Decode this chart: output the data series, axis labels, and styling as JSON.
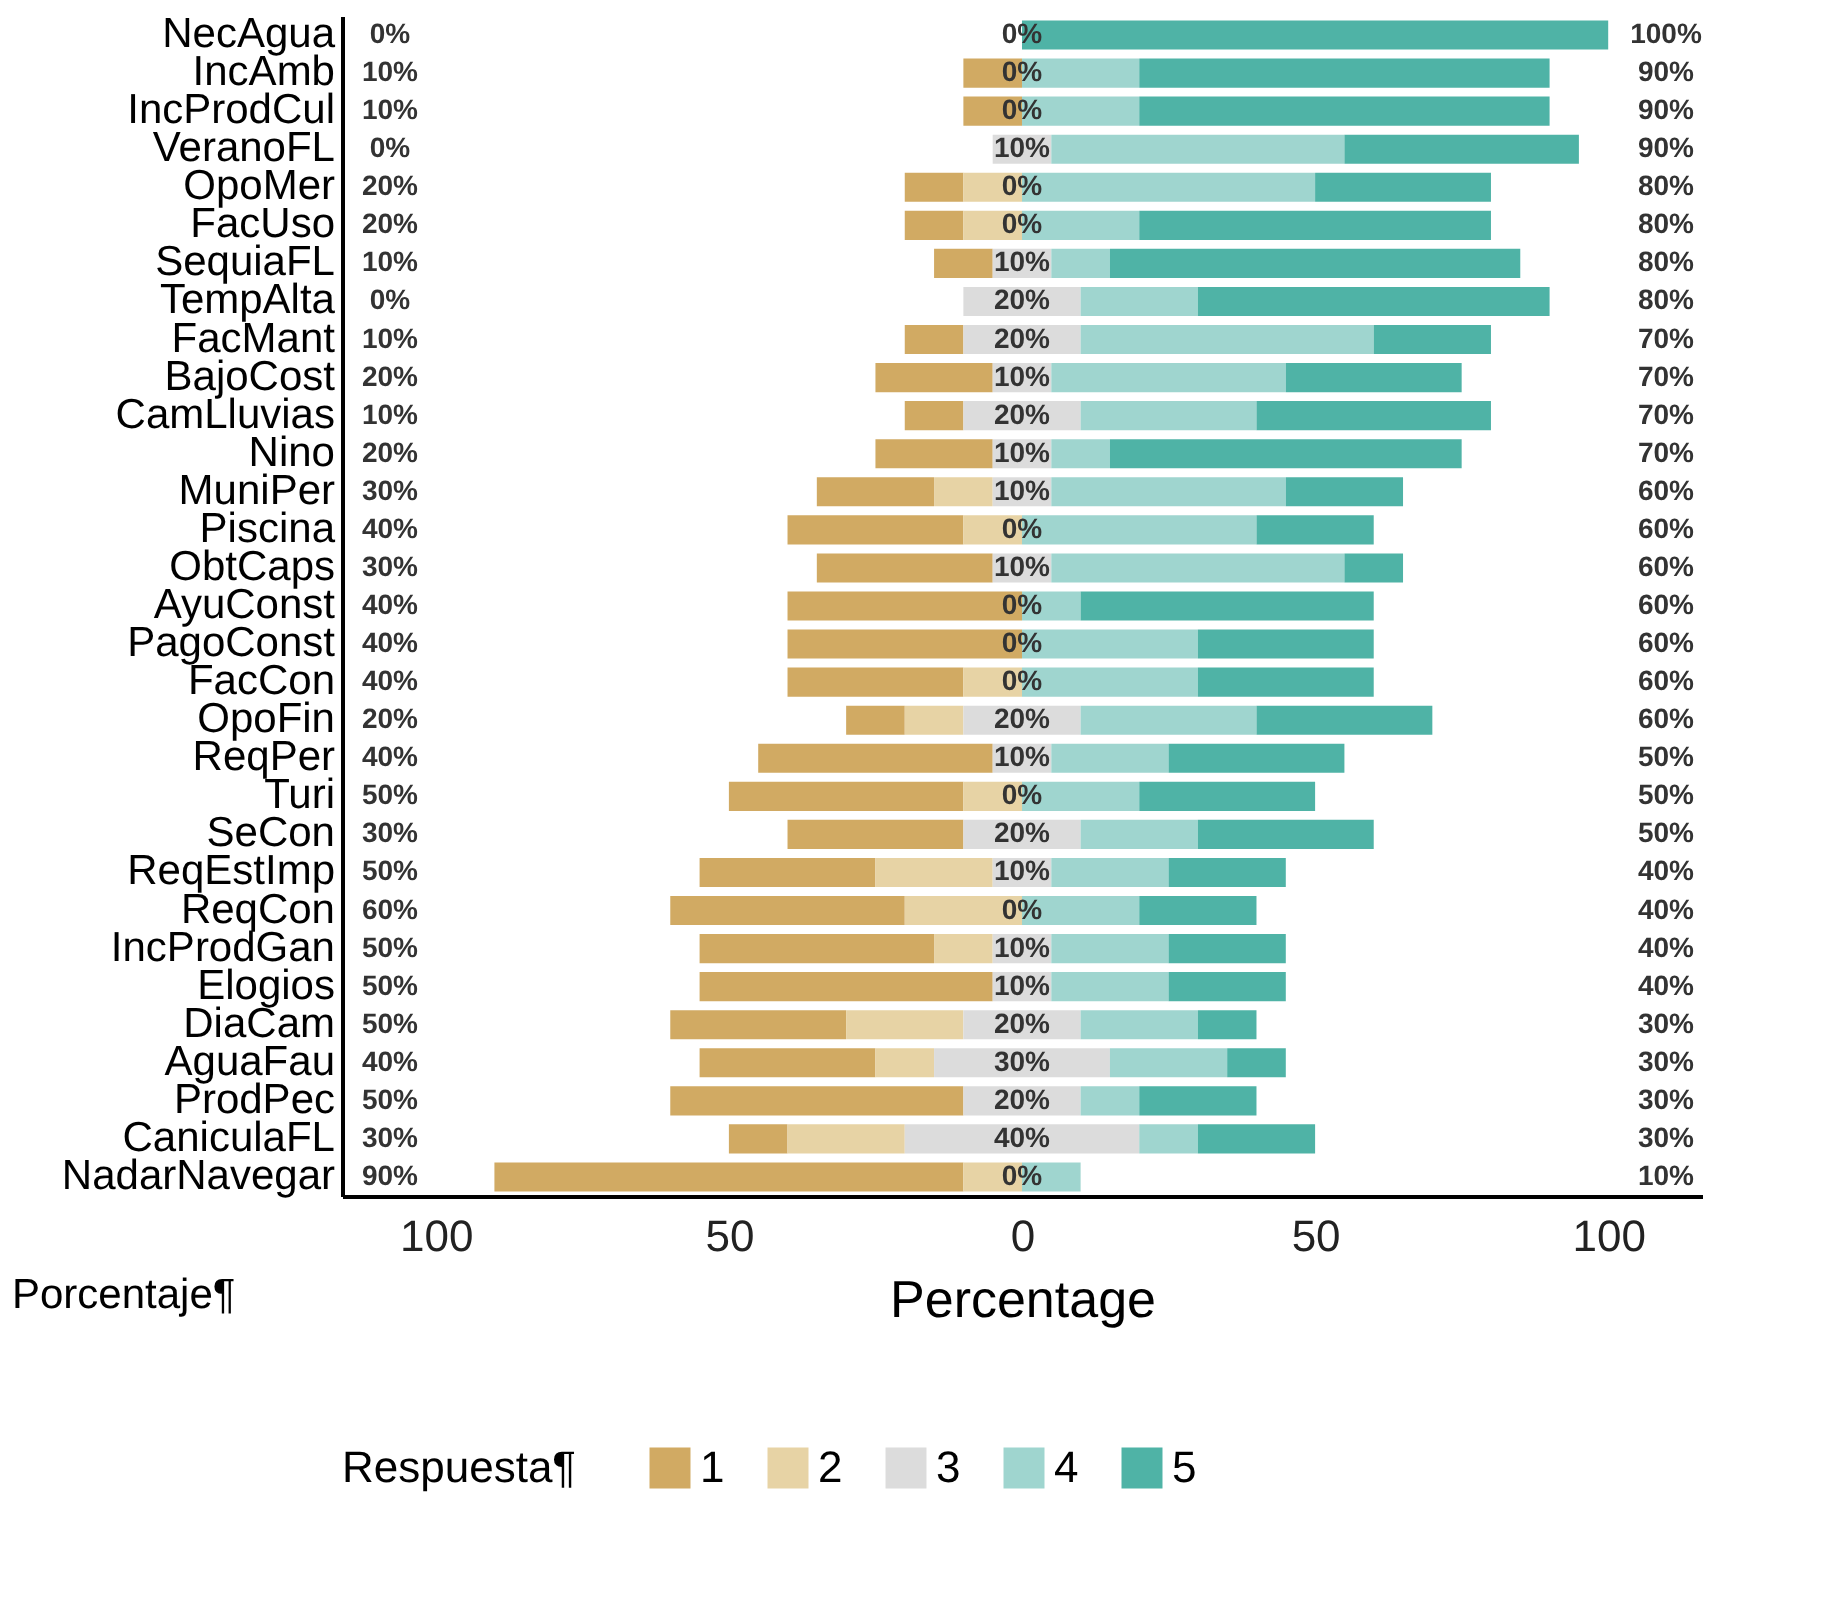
{
  "chart_data": {
    "type": "bar",
    "orientation": "horizontal",
    "categories": [
      "NecAgua",
      "IncAmb",
      "IncProdCul",
      "VeranoFL",
      "OpoMer",
      "FacUso",
      "SequiaFL",
      "TempAlta",
      "FacMant",
      "BajoCost",
      "CamLluvias",
      "Nino",
      "MuniPer",
      "Piscina",
      "ObtCaps",
      "AyuConst",
      "PagoConst",
      "FacCon",
      "OpoFin",
      "ReqPer",
      "Turi",
      "SeCon",
      "ReqEstImp",
      "ReqCon",
      "IncProdGan",
      "Elogios",
      "DiaCam",
      "AguaFau",
      "ProdPec",
      "CaniculaFL",
      "NadarNavegar"
    ],
    "series": [
      {
        "name": "1",
        "color": "#d1aa63",
        "values": [
          0,
          10,
          10,
          0,
          10,
          10,
          10,
          0,
          10,
          20,
          10,
          20,
          20,
          30,
          30,
          40,
          40,
          30,
          10,
          40,
          40,
          30,
          30,
          40,
          40,
          50,
          30,
          30,
          50,
          10,
          80
        ],
        "base": [
          null,
          -10,
          -10,
          null,
          -20,
          -20,
          -15,
          null,
          -20,
          -25,
          -20,
          -25,
          -35,
          -40,
          -35,
          -40,
          -40,
          -40,
          -30,
          -45,
          -50,
          -40,
          -55,
          -60,
          -55,
          -55,
          -60,
          -55,
          -60,
          -50,
          -90
        ]
      },
      {
        "name": "2",
        "color": "#e7d3a5",
        "values": [
          0,
          0,
          0,
          0,
          10,
          10,
          0,
          0,
          0,
          0,
          0,
          0,
          10,
          10,
          0,
          0,
          0,
          10,
          10,
          0,
          10,
          0,
          20,
          20,
          10,
          0,
          20,
          10,
          0,
          20,
          10
        ],
        "base": [
          null,
          null,
          null,
          null,
          -10,
          -10,
          null,
          null,
          null,
          null,
          null,
          null,
          -15,
          -10,
          null,
          null,
          null,
          -10,
          -20,
          null,
          -10,
          null,
          -25,
          -20,
          -15,
          null,
          -30,
          -25,
          null,
          -40,
          -10
        ]
      },
      {
        "name": "3",
        "color": "#dcdcdc",
        "values": [
          0,
          0,
          0,
          10,
          0,
          0,
          10,
          20,
          20,
          10,
          20,
          10,
          10,
          0,
          10,
          0,
          0,
          0,
          20,
          10,
          0,
          20,
          10,
          0,
          10,
          10,
          20,
          30,
          20,
          40,
          0
        ],
        "base": [
          null,
          null,
          null,
          -5,
          null,
          null,
          -5,
          -10,
          -10,
          -5,
          -10,
          -5,
          -5,
          null,
          -5,
          null,
          null,
          null,
          -10,
          -5,
          null,
          -10,
          -5,
          null,
          -5,
          -5,
          -10,
          -15,
          -10,
          -20,
          null
        ],
        "value_labels": [
          "0%",
          "0%",
          "0%",
          "10%",
          "0%",
          "0%",
          "10%",
          "20%",
          "20%",
          "10%",
          "20%",
          "10%",
          "10%",
          "0%",
          "10%",
          "0%",
          "0%",
          "0%",
          "20%",
          "10%",
          "0%",
          "20%",
          "10%",
          "0%",
          "10%",
          "10%",
          "20%",
          "30%",
          "20%",
          "40%",
          "0%"
        ]
      },
      {
        "name": "4",
        "color": "#9fd5cf",
        "values": [
          0,
          20,
          20,
          50,
          50,
          20,
          10,
          20,
          50,
          40,
          30,
          10,
          40,
          40,
          50,
          10,
          30,
          30,
          30,
          20,
          20,
          20,
          20,
          20,
          20,
          20,
          20,
          20,
          10,
          10,
          10
        ],
        "base": [
          null,
          0,
          0,
          5,
          0,
          0,
          5,
          10,
          10,
          5,
          10,
          5,
          5,
          0,
          5,
          0,
          0,
          0,
          10,
          5,
          0,
          10,
          5,
          0,
          5,
          5,
          10,
          15,
          10,
          20,
          0
        ]
      },
      {
        "name": "5",
        "color": "#4fb3a6",
        "values": [
          100,
          70,
          70,
          40,
          30,
          60,
          70,
          60,
          20,
          30,
          40,
          60,
          20,
          20,
          10,
          50,
          30,
          30,
          30,
          30,
          30,
          30,
          20,
          20,
          20,
          20,
          10,
          10,
          20,
          20,
          0
        ],
        "base": [
          0,
          20,
          20,
          55,
          50,
          20,
          15,
          30,
          60,
          45,
          40,
          15,
          45,
          40,
          55,
          10,
          30,
          30,
          40,
          25,
          20,
          30,
          25,
          20,
          25,
          25,
          30,
          35,
          20,
          30,
          null
        ]
      }
    ],
    "xlim": [
      -116,
      116
    ],
    "xticks": [
      {
        "value": -100,
        "label": "100"
      },
      {
        "value": -50,
        "label": "50"
      },
      0,
      50,
      100
    ],
    "xlabel": "Percentage",
    "legend_title": "Respuesta¶",
    "legend": "bottom",
    "annotations": [
      "0%",
      "10%",
      "10%",
      "0%",
      "20%",
      "20%",
      "10%",
      "0%",
      "10%",
      "20%",
      "10%",
      "20%",
      "30%",
      "40%",
      "30%",
      "40%",
      "40%",
      "40%",
      "20%",
      "40%",
      "50%",
      "30%",
      "50%",
      "60%",
      "50%",
      "50%",
      "50%",
      "40%",
      "50%",
      "30%",
      "90%",
      "100%",
      "90%",
      "90%",
      "90%",
      "80%",
      "80%",
      "80%",
      "80%",
      "70%",
      "70%",
      "70%",
      "70%",
      "60%",
      "60%",
      "60%",
      "60%",
      "60%",
      "60%",
      "60%",
      "50%",
      "50%",
      "50%",
      "40%",
      "40%",
      "40%",
      "40%",
      "30%",
      "30%",
      "30%",
      "30%",
      "10%",
      "Porcentaje¶"
    ]
  }
}
